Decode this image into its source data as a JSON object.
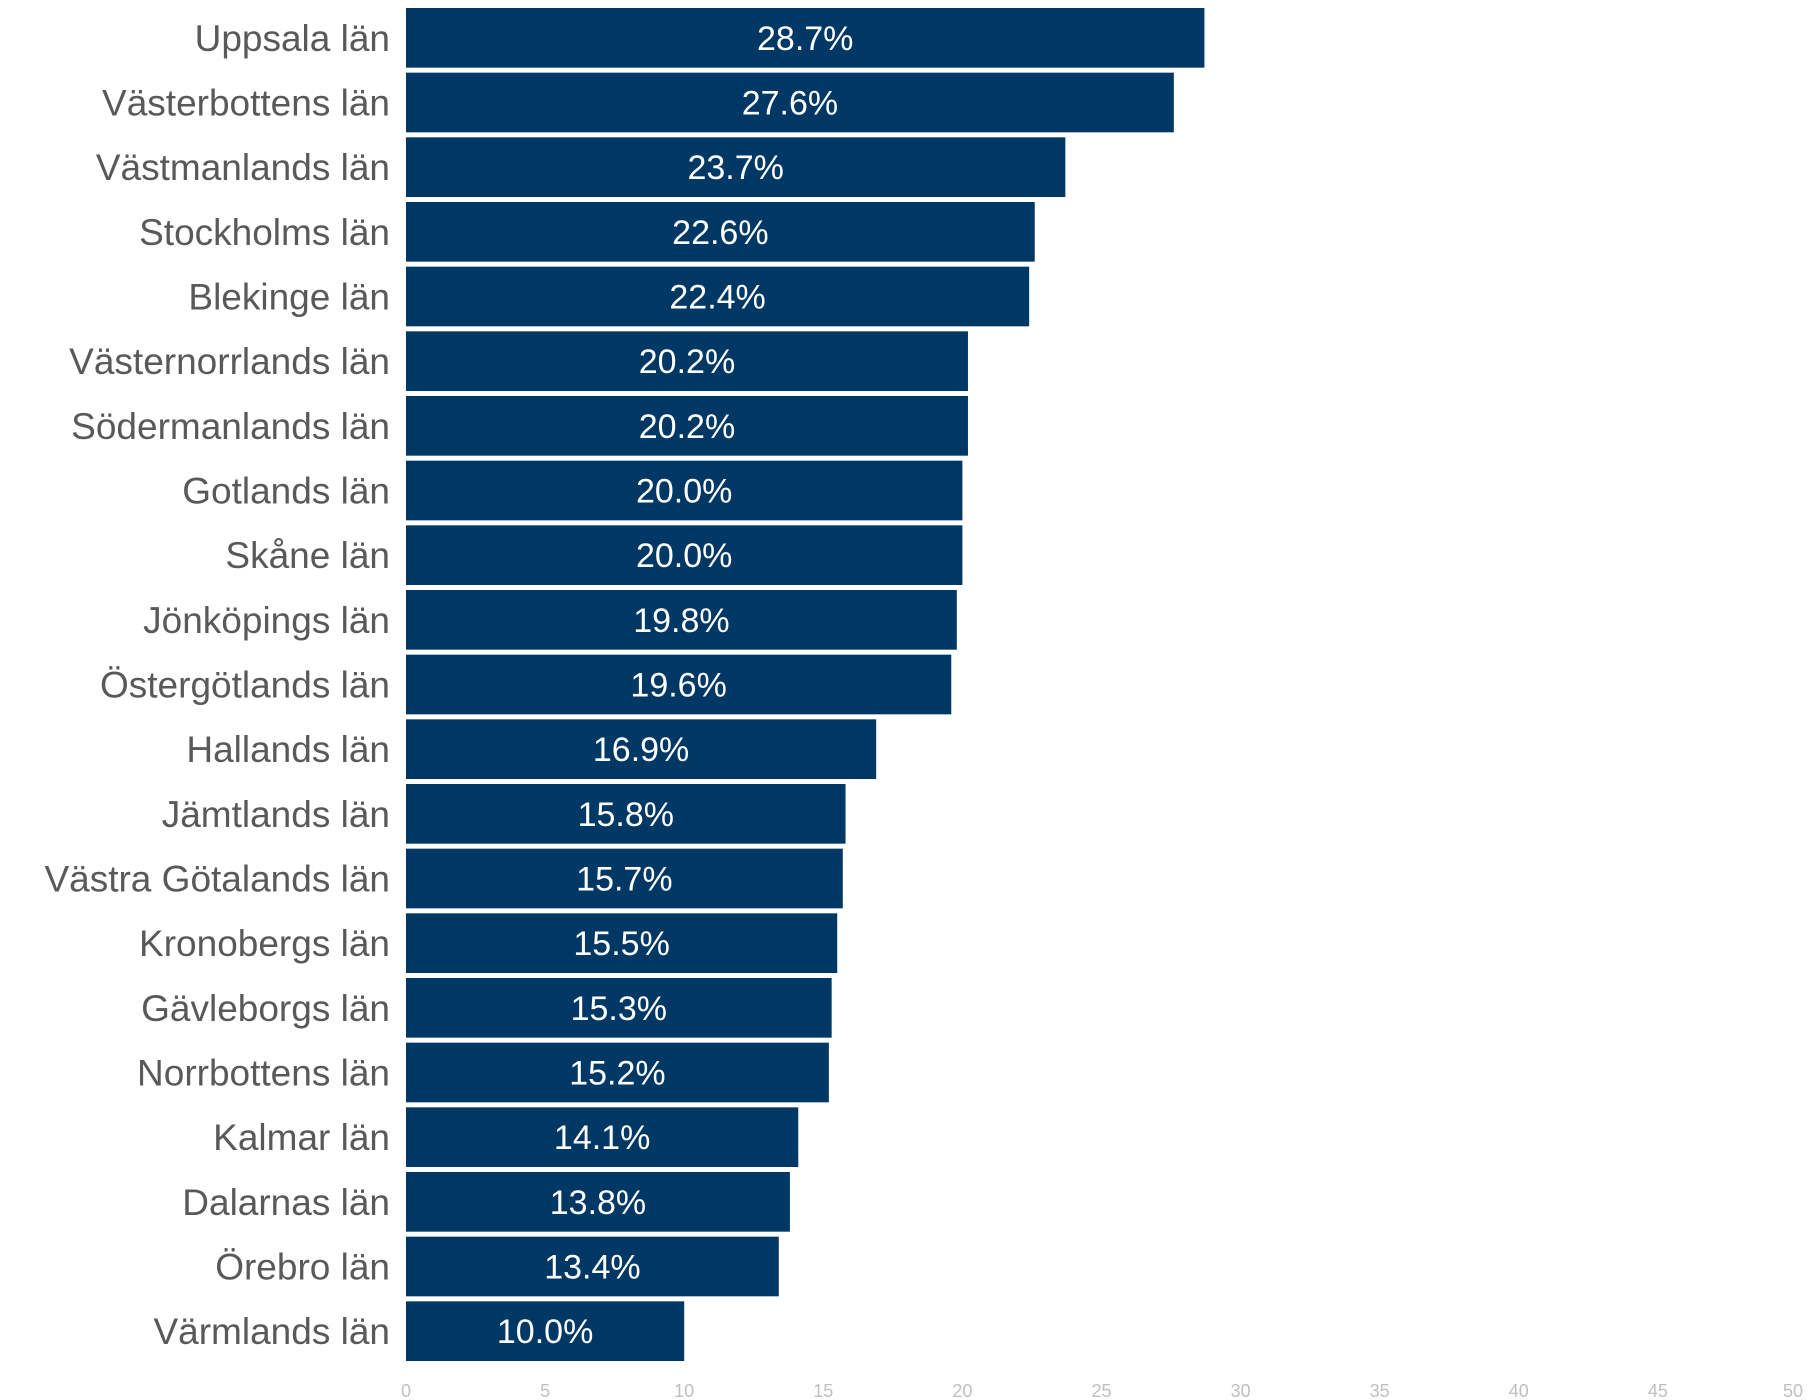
{
  "chart_data": {
    "type": "bar",
    "orientation": "horizontal",
    "title": "",
    "xlabel": "",
    "ylabel": "",
    "xlim": [
      0,
      50
    ],
    "xticks": [
      "0",
      "5",
      "10",
      "15",
      "20",
      "25",
      "30",
      "35",
      "40",
      "45",
      "50"
    ],
    "grid": false,
    "bar_color": "#003865",
    "categories": [
      "Uppsala län",
      "Västerbottens län",
      "Västmanlands län",
      "Stockholms län",
      "Blekinge län",
      "Västernorrlands län",
      "Södermanlands län",
      "Gotlands län",
      "Skåne län",
      "Jönköpings län",
      "Östergötlands län",
      "Hallands län",
      "Jämtlands län",
      "Västra Götalands län",
      "Kronobergs län",
      "Gävleborgs län",
      "Norrbottens län",
      "Kalmar län",
      "Dalarnas län",
      "Örebro län",
      "Värmlands län"
    ],
    "values": [
      28.7,
      27.6,
      23.7,
      22.6,
      22.4,
      20.2,
      20.2,
      20.0,
      20.0,
      19.8,
      19.6,
      16.9,
      15.8,
      15.7,
      15.5,
      15.3,
      15.2,
      14.1,
      13.8,
      13.4,
      10.0
    ],
    "data_labels": [
      "28.7%",
      "27.6%",
      "23.7%",
      "22.6%",
      "22.4%",
      "20.2%",
      "20.2%",
      "20.0%",
      "20.0%",
      "19.8%",
      "19.6%",
      "16.9%",
      "15.8%",
      "15.7%",
      "15.5%",
      "15.3%",
      "15.2%",
      "14.1%",
      "13.8%",
      "13.4%",
      "10.0%"
    ]
  }
}
